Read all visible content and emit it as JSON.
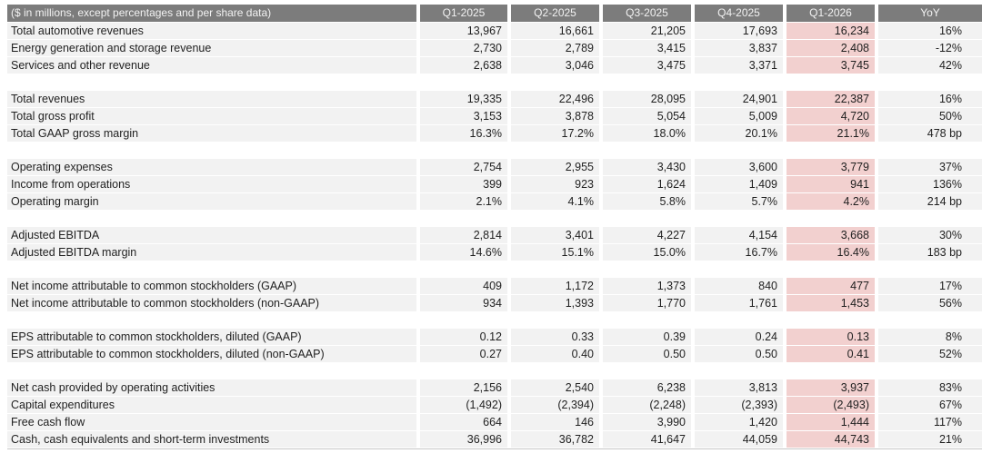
{
  "table": {
    "header": {
      "label": "($ in millions, except percentages and per share data)",
      "columns": [
        "Q1-2025",
        "Q2-2025",
        "Q3-2025",
        "Q4-2025",
        "Q1-2026",
        "YoY"
      ]
    },
    "highlight_column": "Q1-2026",
    "colors": {
      "header_bg": "#7c7c7c",
      "header_text": "#f2f2f2",
      "row_bg": "#f2f2f2",
      "highlight_bg": "#f2d0cf",
      "text": "#1f1f1f"
    },
    "groups": [
      {
        "rows": [
          {
            "label": "Total automotive revenues",
            "values": [
              "13,967",
              "16,661",
              "21,205",
              "17,693",
              "16,234",
              "16%"
            ]
          },
          {
            "label": "Energy generation and storage revenue",
            "values": [
              "2,730",
              "2,789",
              "3,415",
              "3,837",
              "2,408",
              "-12%"
            ]
          },
          {
            "label": "Services and other revenue",
            "values": [
              "2,638",
              "3,046",
              "3,475",
              "3,371",
              "3,745",
              "42%"
            ]
          }
        ]
      },
      {
        "rows": [
          {
            "label": "Total revenues",
            "values": [
              "19,335",
              "22,496",
              "28,095",
              "24,901",
              "22,387",
              "16%"
            ]
          },
          {
            "label": "Total gross profit",
            "values": [
              "3,153",
              "3,878",
              "5,054",
              "5,009",
              "4,720",
              "50%"
            ]
          },
          {
            "label": "Total GAAP gross margin",
            "values": [
              "16.3%",
              "17.2%",
              "18.0%",
              "20.1%",
              "21.1%",
              "478 bp"
            ]
          }
        ]
      },
      {
        "rows": [
          {
            "label": "Operating expenses",
            "values": [
              "2,754",
              "2,955",
              "3,430",
              "3,600",
              "3,779",
              "37%"
            ]
          },
          {
            "label": "Income from operations",
            "values": [
              "399",
              "923",
              "1,624",
              "1,409",
              "941",
              "136%"
            ]
          },
          {
            "label": "Operating margin",
            "values": [
              "2.1%",
              "4.1%",
              "5.8%",
              "5.7%",
              "4.2%",
              "214 bp"
            ]
          }
        ]
      },
      {
        "rows": [
          {
            "label": "Adjusted EBITDA",
            "values": [
              "2,814",
              "3,401",
              "4,227",
              "4,154",
              "3,668",
              "30%"
            ]
          },
          {
            "label": "Adjusted EBITDA margin",
            "values": [
              "14.6%",
              "15.1%",
              "15.0%",
              "16.7%",
              "16.4%",
              "183 bp"
            ]
          }
        ]
      },
      {
        "rows": [
          {
            "label": "Net income attributable to common stockholders (GAAP)",
            "values": [
              "409",
              "1,172",
              "1,373",
              "840",
              "477",
              "17%"
            ]
          },
          {
            "label": "Net income attributable to common stockholders (non-GAAP)",
            "values": [
              "934",
              "1,393",
              "1,770",
              "1,761",
              "1,453",
              "56%"
            ]
          }
        ]
      },
      {
        "rows": [
          {
            "label": "EPS attributable to common stockholders, diluted (GAAP)",
            "values": [
              "0.12",
              "0.33",
              "0.39",
              "0.24",
              "0.13",
              "8%"
            ]
          },
          {
            "label": "EPS attributable to common stockholders, diluted (non-GAAP)",
            "values": [
              "0.27",
              "0.40",
              "0.50",
              "0.50",
              "0.41",
              "52%"
            ]
          }
        ]
      },
      {
        "rows": [
          {
            "label": "Net cash provided by operating activities",
            "values": [
              "2,156",
              "2,540",
              "6,238",
              "3,813",
              "3,937",
              "83%"
            ]
          },
          {
            "label": "Capital expenditures",
            "values": [
              "(1,492)",
              "(2,394)",
              "(2,248)",
              "(2,393)",
              "(2,493)",
              "67%"
            ]
          },
          {
            "label": "Free cash flow",
            "values": [
              "664",
              "146",
              "3,990",
              "1,420",
              "1,444",
              "117%"
            ]
          },
          {
            "label": "Cash, cash equivalents and short-term investments",
            "values": [
              "36,996",
              "36,782",
              "41,647",
              "44,059",
              "44,743",
              "21%"
            ]
          }
        ]
      }
    ]
  }
}
